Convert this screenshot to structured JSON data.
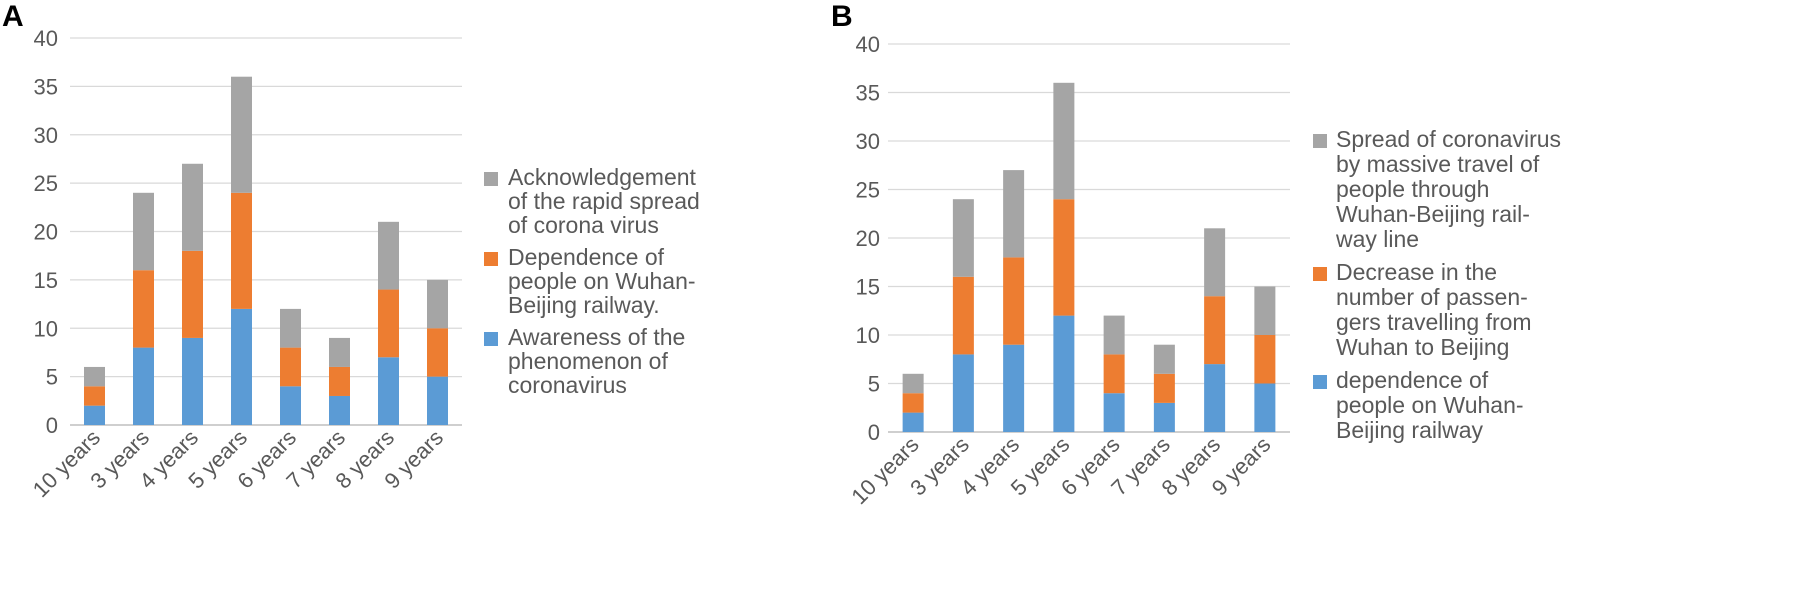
{
  "chart_data": [
    {
      "type": "bar",
      "stacked": true,
      "panel_label": "A",
      "categories": [
        "10 years",
        "3 years",
        "4 years",
        "5 years",
        "6 years",
        "7 years",
        "8 years",
        "9 years"
      ],
      "series": [
        {
          "name": "Awareness of the phenomenon of coronavirus",
          "legend_lines": [
            "Awareness of the",
            "phenomenon of",
            "coronavirus"
          ],
          "color": "#5b9bd5",
          "values": [
            2,
            8,
            9,
            12,
            4,
            3,
            7,
            5
          ]
        },
        {
          "name": "Dependence of people on Wuhan-Beijing railway.",
          "legend_lines": [
            "Dependence of",
            "people on Wuhan-",
            "Beijing railway."
          ],
          "color": "#ed7d31",
          "values": [
            2,
            8,
            9,
            12,
            4,
            3,
            7,
            5
          ]
        },
        {
          "name": "Acknowledgement of the rapid spread of corona virus",
          "legend_lines": [
            "Acknowledgement",
            "of the rapid spread",
            "of corona virus"
          ],
          "color": "#a5a5a5",
          "values": [
            2,
            8,
            9,
            12,
            4,
            3,
            7,
            5
          ]
        }
      ],
      "yticks": [
        0,
        5,
        10,
        15,
        20,
        25,
        30,
        35,
        40
      ],
      "ylim": [
        0,
        40
      ],
      "title": "",
      "xlabel": "",
      "ylabel": "",
      "legend_position": "right",
      "grid": true
    },
    {
      "type": "bar",
      "stacked": true,
      "panel_label": "B",
      "categories": [
        "10 years",
        "3 years",
        "4 years",
        "5 years",
        "6 years",
        "7 years",
        "8 years",
        "9 years"
      ],
      "series": [
        {
          "name": "dependence of people on Wuhan-Beijing railway",
          "legend_lines": [
            "dependence of",
            "people on Wuhan-",
            "Beijing railway"
          ],
          "color": "#5b9bd5",
          "values": [
            2,
            8,
            9,
            12,
            4,
            3,
            7,
            5
          ]
        },
        {
          "name": "Decrease in the number of passengers travelling from Wuhan to Beijing",
          "legend_lines": [
            "Decrease in the",
            "number of passen-",
            "gers travelling from",
            "Wuhan to Beijing"
          ],
          "color": "#ed7d31",
          "values": [
            2,
            8,
            9,
            12,
            4,
            3,
            7,
            5
          ]
        },
        {
          "name": "Spread of coronavirus by massive travel of people through Wuhan-Beijing railway line",
          "legend_lines": [
            "Spread of coronavirus",
            "by massive travel of",
            "people through",
            "Wuhan-Beijing rail-",
            "way line"
          ],
          "color": "#a5a5a5",
          "values": [
            2,
            8,
            9,
            12,
            4,
            3,
            7,
            5
          ]
        }
      ],
      "yticks": [
        0,
        5,
        10,
        15,
        20,
        25,
        30,
        35,
        40
      ],
      "ylim": [
        0,
        40
      ],
      "title": "",
      "xlabel": "",
      "ylabel": "",
      "legend_position": "right",
      "grid": true
    }
  ]
}
